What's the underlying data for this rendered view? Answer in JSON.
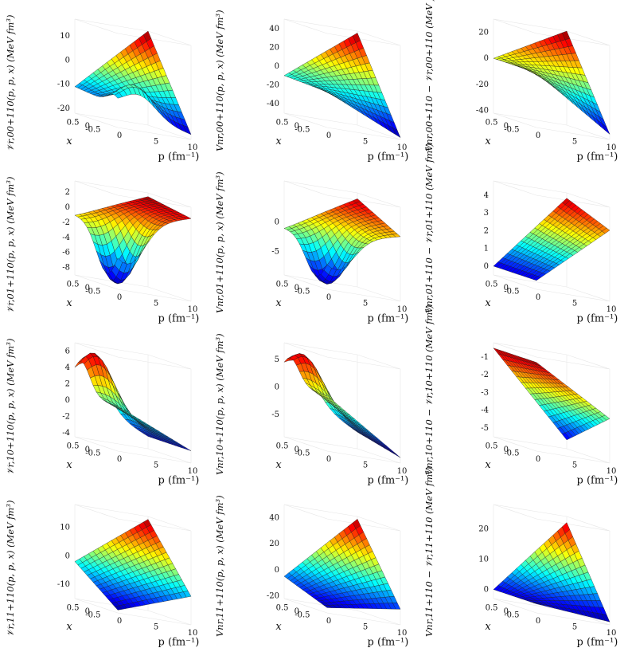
{
  "chart_data": [
    {
      "type": "surface",
      "row": 0,
      "col": 0,
      "zlabel": "𝒱r,00+110(p, p, x) (MeV fm³)",
      "xlabel": "p (fm⁻¹)",
      "ylabel": "x",
      "p_ticks": [
        "0",
        "5",
        "10"
      ],
      "x_ticks": [
        "0.5",
        "0",
        "-0.5"
      ],
      "z_ticks": [
        "10",
        "0",
        "-10",
        "-20"
      ],
      "zlim": [
        -22,
        17
      ],
      "plim": [
        0,
        10
      ],
      "xlim": [
        -1,
        1
      ],
      "corners": {
        "p0_xp": -11,
        "p0_xm": -13,
        "p10_xp": 17,
        "p10_xm": -20
      },
      "bump": {
        "amp": 10,
        "p": 3,
        "x": -0.8,
        "w": 0.3
      }
    },
    {
      "type": "surface",
      "row": 0,
      "col": 1,
      "zlabel": "Vnr,00+110(p, p, x) (MeV fm³)",
      "xlabel": "p (fm⁻¹)",
      "ylabel": "x",
      "p_ticks": [
        "0",
        "5",
        "10"
      ],
      "x_ticks": [
        "0.5",
        "0",
        "-0.5"
      ],
      "z_ticks": [
        "40",
        "20",
        "0",
        "-20",
        "-40"
      ],
      "zlim": [
        -50,
        50
      ],
      "plim": [
        0,
        10
      ],
      "xlim": [
        -1,
        1
      ],
      "corners": {
        "p0_xp": -10,
        "p0_xm": -12,
        "p10_xp": 48,
        "p10_xm": -48
      },
      "bump": {
        "amp": 0,
        "p": 3,
        "x": 0,
        "w": 0.3
      }
    },
    {
      "type": "surface",
      "row": 0,
      "col": 2,
      "zlabel": "Vnr,00+110 − 𝒱r,00+110 (MeV fm³)",
      "xlabel": "p (fm⁻¹)",
      "ylabel": "x",
      "p_ticks": [
        "0",
        "5",
        "10"
      ],
      "x_ticks": [
        "0.5",
        "0",
        "-0.5"
      ],
      "z_ticks": [
        "20",
        "0",
        "-20",
        "-40"
      ],
      "zlim": [
        -42,
        30
      ],
      "plim": [
        0,
        10
      ],
      "xlim": [
        -1,
        1
      ],
      "corners": {
        "p0_xp": 0,
        "p0_xm": 0,
        "p10_xp": 30,
        "p10_xm": -38
      },
      "bump": {
        "amp": 0,
        "p": 3,
        "x": 0,
        "w": 0.3
      }
    },
    {
      "type": "surface",
      "row": 1,
      "col": 0,
      "zlabel": "𝒱r,01+110(p, p, x) (MeV fm³)",
      "xlabel": "p (fm⁻¹)",
      "ylabel": "x",
      "p_ticks": [
        "0",
        "5",
        "10"
      ],
      "x_ticks": [
        "0.5",
        "0",
        "-0.5"
      ],
      "z_ticks": [
        "2",
        "0",
        "-2",
        "-4",
        "-6",
        "-8"
      ],
      "zlim": [
        -9,
        3.5
      ],
      "plim": [
        0,
        10
      ],
      "xlim": [
        -1,
        1
      ],
      "corners": {
        "p0_xp": -1,
        "p0_xm": -1,
        "p10_xp": 3,
        "p10_xm": 2
      },
      "bump": {
        "amp": -8,
        "p": 1.5,
        "x": -0.5,
        "w": 0.5
      }
    },
    {
      "type": "surface",
      "row": 1,
      "col": 1,
      "zlabel": "Vnr,01+110(p, p, x) (MeV fm³)",
      "xlabel": "p (fm⁻¹)",
      "ylabel": "x",
      "p_ticks": [
        "0",
        "5",
        "10"
      ],
      "x_ticks": [
        "0.5",
        "0",
        "-0.5"
      ],
      "z_ticks": [
        "0",
        "-5"
      ],
      "zlim": [
        -9,
        7
      ],
      "plim": [
        0,
        10
      ],
      "xlim": [
        -1,
        1
      ],
      "corners": {
        "p0_xp": -1,
        "p0_xm": -1,
        "p10_xp": 6,
        "p10_xm": 2
      },
      "bump": {
        "amp": -8,
        "p": 1.5,
        "x": -0.5,
        "w": 0.5
      }
    },
    {
      "type": "surface",
      "row": 1,
      "col": 2,
      "zlabel": "Vnr,01+110 − 𝒱r,01+110 (MeV fm³)",
      "xlabel": "p (fm⁻¹)",
      "ylabel": "x",
      "p_ticks": [
        "0",
        "5",
        "10"
      ],
      "x_ticks": [
        "0.5",
        "0",
        "-0.5"
      ],
      "z_ticks": [
        "4",
        "3",
        "2",
        "1",
        "0"
      ],
      "zlim": [
        -0.5,
        4.8
      ],
      "plim": [
        0,
        10
      ],
      "xlim": [
        -1,
        1
      ],
      "corners": {
        "p0_xp": 0,
        "p0_xm": 0,
        "p10_xp": 4.5,
        "p10_xm": 3.5
      },
      "bump": {
        "amp": 0,
        "p": 3,
        "x": 0,
        "w": 0.3
      }
    },
    {
      "type": "surface",
      "row": 2,
      "col": 0,
      "zlabel": "𝒱r,10+110(p, p, x) (MeV fm³)",
      "xlabel": "p (fm⁻¹)",
      "ylabel": "x",
      "p_ticks": [
        "0",
        "5",
        "10"
      ],
      "x_ticks": [
        "0.5",
        "0",
        "-0.5"
      ],
      "z_ticks": [
        "6",
        "4",
        "2",
        "0",
        "-2",
        "-4"
      ],
      "zlim": [
        -4.5,
        7
      ],
      "plim": [
        0,
        10
      ],
      "xlim": [
        -1,
        1
      ],
      "corners": {
        "p0_xp": 1,
        "p0_xm": 1,
        "p10_xp": -3,
        "p10_xm": -3
      },
      "bump": {
        "amp": 6,
        "p": 2,
        "x": 0.7,
        "w": 0.4
      }
    },
    {
      "type": "surface",
      "row": 2,
      "col": 1,
      "zlabel": "Vnr,10+110(p, p, x) (MeV fm³)",
      "xlabel": "p (fm⁻¹)",
      "ylabel": "x",
      "p_ticks": [
        "0",
        "5",
        "10"
      ],
      "x_ticks": [
        "0.5",
        "0",
        "-0.5"
      ],
      "z_ticks": [
        "5",
        "0",
        "-5"
      ],
      "zlim": [
        -9,
        8
      ],
      "plim": [
        0,
        10
      ],
      "xlim": [
        -1,
        1
      ],
      "corners": {
        "p0_xp": 1,
        "p0_xm": 1,
        "p10_xp": -6,
        "p10_xm": -8
      },
      "bump": {
        "amp": 7,
        "p": 2,
        "x": 0.7,
        "w": 0.4
      }
    },
    {
      "type": "surface",
      "row": 2,
      "col": 2,
      "zlabel": "Vnr,10+110 − 𝒱r,10+110 (MeV fm³)",
      "xlabel": "p (fm⁻¹)",
      "ylabel": "x",
      "p_ticks": [
        "0",
        "5",
        "10"
      ],
      "x_ticks": [
        "0.5",
        "0",
        "-0.5"
      ],
      "z_ticks": [
        "-1",
        "-2",
        "-3",
        "-4",
        "-5"
      ],
      "zlim": [
        -5.5,
        -0.2
      ],
      "plim": [
        0,
        10
      ],
      "xlim": [
        -1,
        1
      ],
      "corners": {
        "p0_xp": -0.5,
        "p0_xm": -0.5,
        "p10_xp": -5,
        "p10_xm": -3
      },
      "bump": {
        "amp": 0,
        "p": 3,
        "x": 0,
        "w": 0.3
      }
    },
    {
      "type": "surface",
      "row": 3,
      "col": 0,
      "zlabel": "𝒱r,11+110(p, p, x) (MeV fm³)",
      "xlabel": "p (fm⁻¹)",
      "ylabel": "x",
      "p_ticks": [
        "0",
        "5",
        "10"
      ],
      "x_ticks": [
        "0.5",
        "0",
        "-0.5"
      ],
      "z_ticks": [
        "10",
        "0",
        "-10"
      ],
      "zlim": [
        -15,
        18
      ],
      "plim": [
        0,
        10
      ],
      "xlim": [
        -1,
        1
      ],
      "corners": {
        "p0_xp": -2,
        "p0_xm": -14,
        "p10_xp": 17,
        "p10_xm": -5
      },
      "bump": {
        "amp": 0,
        "p": 3,
        "x": 0,
        "w": 0.3
      }
    },
    {
      "type": "surface",
      "row": 3,
      "col": 1,
      "zlabel": "Vnr,11+110(p, p, x) (MeV fm³)",
      "xlabel": "p (fm⁻¹)",
      "ylabel": "x",
      "p_ticks": [
        "0",
        "5",
        "10"
      ],
      "x_ticks": [
        "0.5",
        "0",
        "-0.5"
      ],
      "z_ticks": [
        "40",
        "20",
        "0",
        "-20"
      ],
      "zlim": [
        -22,
        50
      ],
      "plim": [
        0,
        10
      ],
      "xlim": [
        -1,
        1
      ],
      "corners": {
        "p0_xp": -5,
        "p0_xm": -18,
        "p10_xp": 48,
        "p10_xm": -10
      },
      "bump": {
        "amp": 0,
        "p": 3,
        "x": 0,
        "w": 0.3
      }
    },
    {
      "type": "surface",
      "row": 3,
      "col": 2,
      "zlabel": "Vnr,11+110 − 𝒱r,11+110 (MeV fm³)",
      "xlabel": "p (fm⁻¹)",
      "ylabel": "x",
      "p_ticks": [
        "0",
        "5",
        "10"
      ],
      "x_ticks": [
        "0.5",
        "0",
        "-0.5"
      ],
      "z_ticks": [
        "20",
        "10",
        "0"
      ],
      "zlim": [
        -3,
        28
      ],
      "plim": [
        0,
        10
      ],
      "xlim": [
        -1,
        1
      ],
      "corners": {
        "p0_xp": 0,
        "p0_xm": 0,
        "p10_xp": 26,
        "p10_xm": -2
      },
      "bump": {
        "amp": 0,
        "p": 3,
        "x": 0,
        "w": 0.3
      }
    }
  ]
}
